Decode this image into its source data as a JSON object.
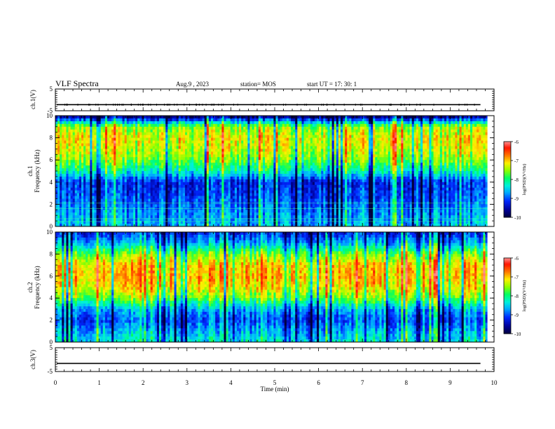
{
  "header": {
    "title": "VLF Spectra",
    "date": "Aug.9 , 2023",
    "station": "station= MOS",
    "start": "start UT = 17: 30: 1"
  },
  "colorbar": {
    "label": "log(PSD)(V²/Hz)",
    "ticks": [
      "-6",
      "-7",
      "-8",
      "-9",
      "-10"
    ],
    "colors": [
      "#000080",
      "#0000ff",
      "#0080ff",
      "#00e5ff",
      "#00ff80",
      "#80ff00",
      "#ffff00",
      "#ff8000",
      "#ff0000",
      "#ff6060",
      "#ffffff"
    ]
  },
  "chart_data": [
    {
      "type": "line",
      "panel": "ch.1 waveform",
      "ylabel": "ch.1(V)",
      "ylim": [
        -5,
        5
      ],
      "yticks": [
        "5",
        "-5"
      ],
      "xlim": [
        0,
        10
      ],
      "series": [
        {
          "values_description_level": -2.2
        }
      ]
    },
    {
      "type": "heatmap",
      "panel": "ch.1 spectrogram",
      "ylabel": "ch.1 Frequency (kHz)",
      "xlabel": "Time (min)",
      "xlim": [
        0,
        10
      ],
      "ylim": [
        0,
        10
      ],
      "yticks": [
        "0",
        "2",
        "4",
        "6",
        "8",
        "10"
      ],
      "zlim": [
        -10,
        -6
      ],
      "data_end_min": 9.85,
      "band_profile": [
        -8.6,
        -8.7,
        -8.9,
        -9.1,
        -9.2,
        -8.2,
        -7.6,
        -7.3,
        -7.2,
        -7.5,
        -9.9
      ]
    },
    {
      "type": "heatmap",
      "panel": "ch.2 spectrogram",
      "ylabel": "ch.2 Frequency (kHz)",
      "xlabel": "Time (min)",
      "xlim": [
        0,
        10
      ],
      "ylim": [
        0,
        10
      ],
      "yticks": [
        "0",
        "2",
        "4",
        "6",
        "8",
        "10"
      ],
      "zlim": [
        -10,
        -6
      ],
      "data_end_min": 9.85,
      "band_profile": [
        -8.3,
        -8.6,
        -9.0,
        -8.6,
        -7.6,
        -7.1,
        -6.9,
        -7.0,
        -7.6,
        -8.6,
        -9.2
      ]
    },
    {
      "type": "line",
      "panel": "ch.3 waveform",
      "ylabel": "ch.3(V)",
      "ylim": [
        -5,
        5
      ],
      "yticks": [
        "5",
        "-5"
      ],
      "xlim": [
        0,
        10
      ],
      "xticks": [
        "0",
        "1",
        "2",
        "3",
        "4",
        "5",
        "6",
        "7",
        "8",
        "9",
        "10"
      ],
      "xlabel": "Time (min)",
      "series": [
        {
          "values_description_level": -1.6
        }
      ]
    }
  ]
}
